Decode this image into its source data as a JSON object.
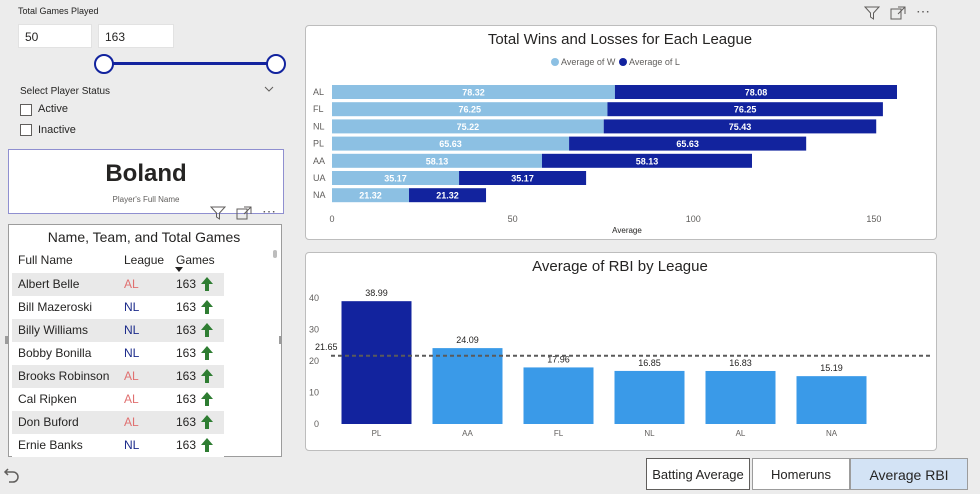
{
  "slider": {
    "title": "Total Games Played",
    "min_value": "50",
    "max_value": "163"
  },
  "status_filter": {
    "title": "Select Player Status",
    "options": [
      "Active",
      "Inactive"
    ]
  },
  "card": {
    "value": "Boland",
    "label": "Player's Full Name"
  },
  "table": {
    "title": "Name, Team, and Total Games",
    "columns": [
      "Full Name",
      "League",
      "Games"
    ],
    "rows": [
      {
        "name": "Albert Belle",
        "league": "AL",
        "games": "163"
      },
      {
        "name": "Bill Mazeroski",
        "league": "NL",
        "games": "163"
      },
      {
        "name": "Billy Williams",
        "league": "NL",
        "games": "163"
      },
      {
        "name": "Bobby Bonilla",
        "league": "NL",
        "games": "163"
      },
      {
        "name": "Brooks Robinson",
        "league": "AL",
        "games": "163"
      },
      {
        "name": "Cal Ripken",
        "league": "AL",
        "games": "163"
      },
      {
        "name": "Don Buford",
        "league": "AL",
        "games": "163"
      },
      {
        "name": "Ernie Banks",
        "league": "NL",
        "games": "163"
      }
    ],
    "colors": {
      "AL": "#e07070",
      "NL": "#1b2a8a"
    }
  },
  "chart_data": [
    {
      "type": "bar",
      "orientation": "horizontal-stacked",
      "title": "Total Wins and Losses for Each League",
      "xlabel": "Average",
      "ylabel": "",
      "xlim": [
        0,
        160
      ],
      "xticks": [
        "0",
        "50",
        "100",
        "150"
      ],
      "categories": [
        "AL",
        "FL",
        "NL",
        "PL",
        "AA",
        "UA",
        "NA"
      ],
      "series": [
        {
          "name": "Average of W",
          "color": "#8cc0e3",
          "values": [
            78.32,
            76.25,
            75.22,
            65.63,
            58.13,
            35.17,
            21.32
          ],
          "labels": [
            "78.32",
            "76.25",
            "75.22",
            "65.63",
            "58.13",
            "35.17",
            "21.32"
          ]
        },
        {
          "name": "Average of L",
          "color": "#12239e",
          "values": [
            78.08,
            76.25,
            75.43,
            65.63,
            58.13,
            35.17,
            21.32
          ],
          "labels": [
            "78.08",
            "76.25",
            "75.43",
            "65.63",
            "58.13",
            "35.17",
            "21.32"
          ]
        }
      ],
      "legend": "top-center"
    },
    {
      "type": "bar",
      "title": "Average of RBI by League",
      "xlabel": "",
      "ylabel": "",
      "ylim": [
        0,
        40
      ],
      "yticks": [
        "0",
        "10",
        "20",
        "30",
        "40"
      ],
      "categories": [
        "PL",
        "AA",
        "FL",
        "NL",
        "AL",
        "NA"
      ],
      "values": [
        38.99,
        24.09,
        17.96,
        16.85,
        16.83,
        15.19
      ],
      "labels": [
        "38.99",
        "24.09",
        "17.96",
        "16.85",
        "16.83",
        "15.19"
      ],
      "highlight_color": "#12239e",
      "bar_color": "#3a9ae8",
      "average_line": {
        "value": 21.65,
        "label": "21.65"
      }
    }
  ],
  "buttons": [
    "Batting Average",
    "Homeruns",
    "Average RBI"
  ]
}
